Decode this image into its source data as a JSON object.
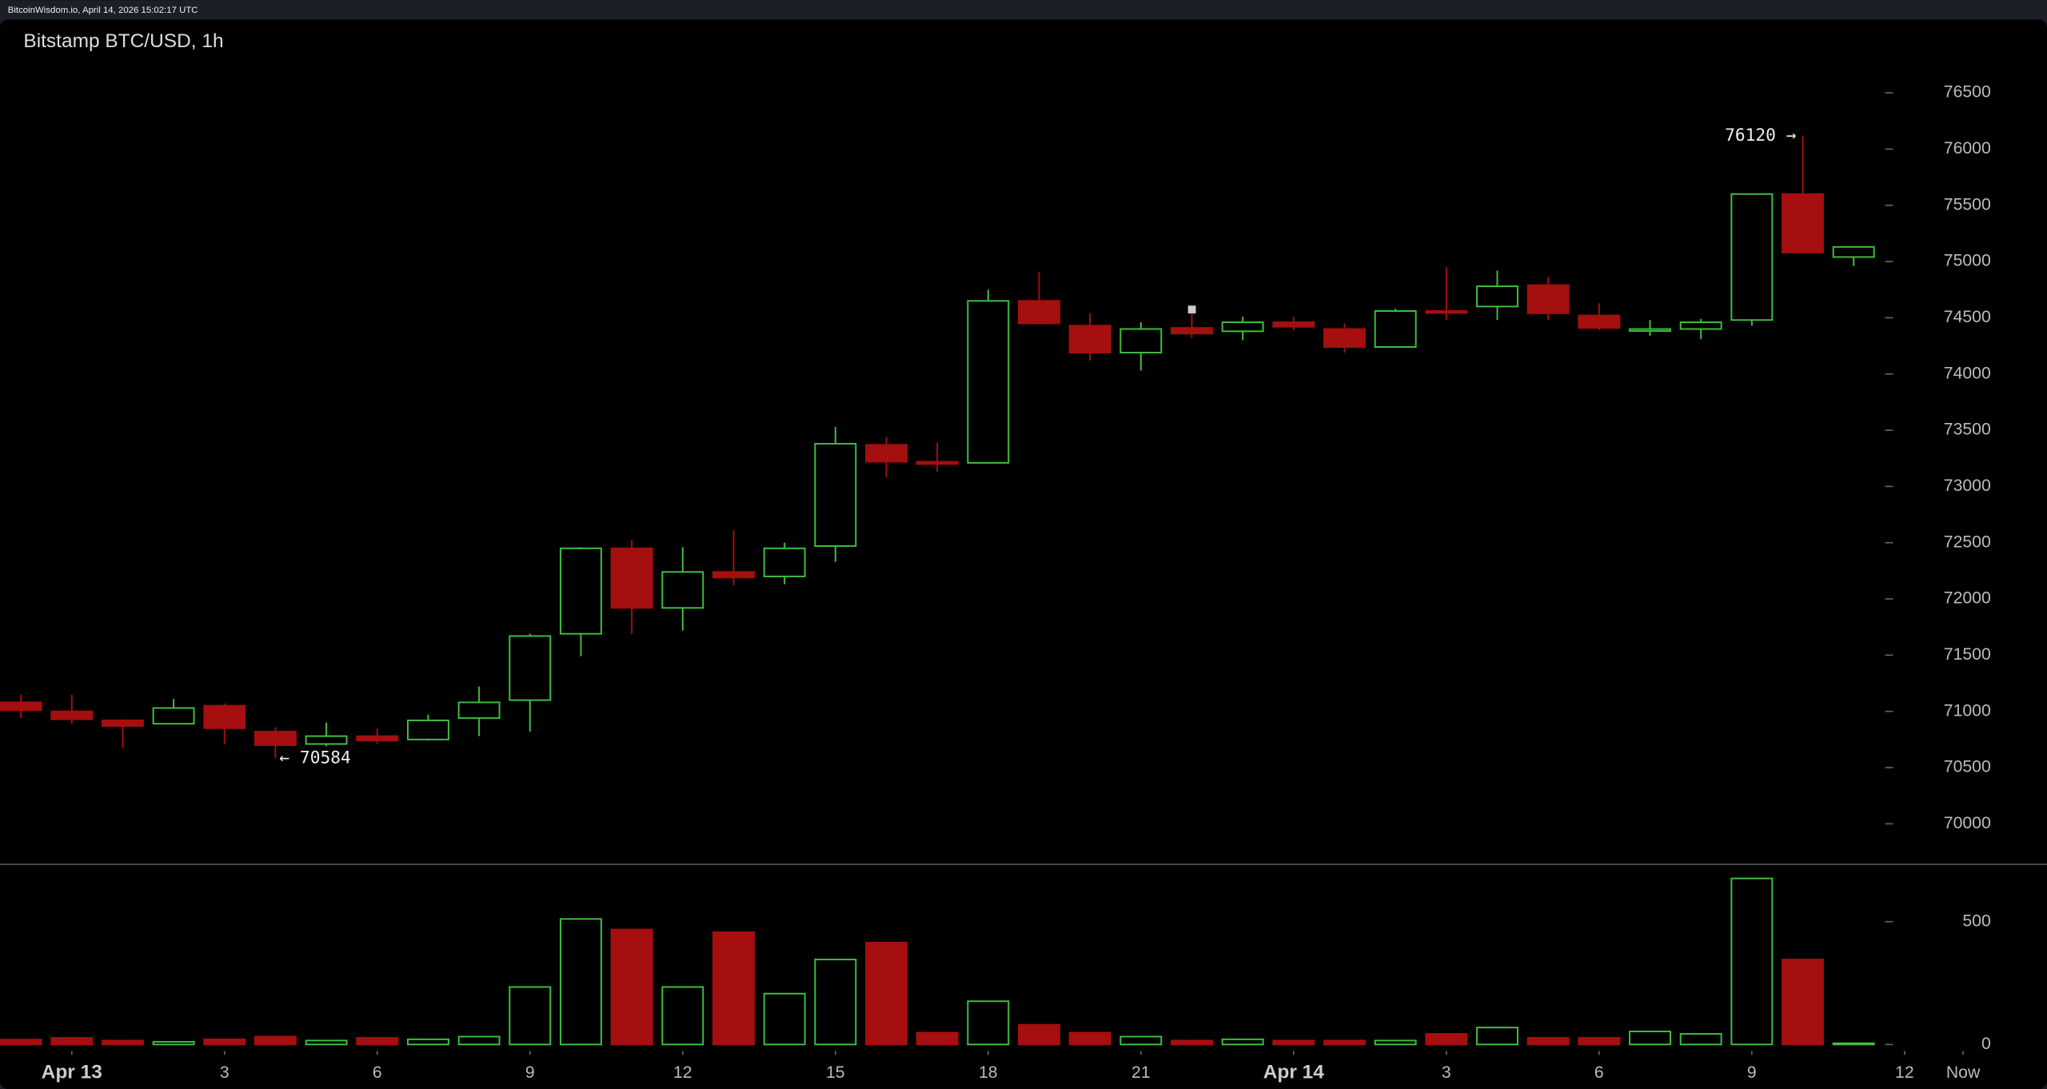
{
  "header": "BitcoinWisdom.io, April 14, 2026 15:02:17 UTC",
  "chart_data": [
    {
      "type": "candlestick",
      "title": "Bitstamp BTC/USD, 1h",
      "x": [
        -1,
        0,
        1,
        2,
        3,
        4,
        5,
        6,
        7,
        8,
        9,
        10,
        11,
        12,
        13,
        14,
        15,
        16,
        17,
        18,
        19,
        20,
        21,
        22,
        23,
        24,
        25,
        26,
        27,
        28,
        29,
        30,
        31,
        32,
        33,
        34,
        35
      ],
      "open": [
        71080,
        71000,
        70920,
        70890,
        71050,
        70820,
        70710,
        70780,
        70750,
        70940,
        71100,
        71690,
        72450,
        71920,
        72240,
        72200,
        72470,
        73370,
        73220,
        73210,
        74650,
        74430,
        74190,
        74410,
        74380,
        74460,
        74400,
        74240,
        74560,
        74600,
        74790,
        74520,
        74390,
        74400,
        74480,
        75600,
        75040
      ],
      "high": [
        71150,
        71150,
        70930,
        71110,
        71070,
        70860,
        70900,
        70850,
        70970,
        71220,
        71690,
        72460,
        72520,
        72460,
        72610,
        72500,
        73530,
        73440,
        73390,
        74750,
        74910,
        74540,
        74460,
        74540,
        74510,
        74510,
        74450,
        74580,
        74950,
        74920,
        74860,
        74630,
        74480,
        74490,
        75600,
        76120,
        75130
      ],
      "low": [
        70940,
        70890,
        70670,
        70890,
        70710,
        70584,
        70690,
        70710,
        70740,
        70780,
        70820,
        71490,
        71690,
        71720,
        72120,
        72130,
        72330,
        73080,
        73130,
        73210,
        74450,
        74120,
        74030,
        74320,
        74300,
        74390,
        74190,
        74240,
        74480,
        74480,
        74480,
        74390,
        74340,
        74310,
        74430,
        75080,
        74960
      ],
      "close": [
        71010,
        70930,
        70870,
        71030,
        70850,
        70700,
        70780,
        70740,
        70920,
        71080,
        71670,
        72450,
        71920,
        72240,
        72190,
        72450,
        73380,
        73220,
        73200,
        74650,
        74450,
        74190,
        74400,
        74360,
        74460,
        74420,
        74240,
        74560,
        74550,
        74780,
        74540,
        74410,
        74400,
        74460,
        75600,
        75080,
        75130
      ],
      "up_color": "#3fbf3f",
      "down_color": "#a50f0f",
      "xlim": [
        -1.41,
        38.08
      ],
      "xticks": [
        {
          "value": 0,
          "label": "Apr 13"
        },
        3,
        6,
        9,
        12,
        15,
        18,
        21,
        {
          "value": 24,
          "label": "Apr 14"
        },
        {
          "value": 27,
          "label": "3"
        },
        {
          "value": 30,
          "label": "6"
        },
        {
          "value": 33,
          "label": "9"
        },
        {
          "value": 36,
          "label": "12"
        },
        {
          "value": 37.15,
          "label": "Now"
        }
      ],
      "ylim": [
        69640,
        76860
      ],
      "yticks": [
        70000,
        70500,
        71000,
        71500,
        72000,
        72500,
        73000,
        73500,
        74000,
        74500,
        75000,
        75500,
        76000,
        76500
      ],
      "annotations": [
        "76120 →",
        "← 70584"
      ]
    },
    {
      "type": "bar",
      "values": [
        20,
        27,
        16,
        11,
        21,
        32,
        16,
        27,
        21,
        32,
        234,
        511,
        468,
        234,
        457,
        207,
        346,
        415,
        48,
        176,
        80,
        48,
        32,
        16,
        21,
        16,
        16,
        16,
        43,
        69,
        27,
        27,
        53,
        43,
        676,
        346,
        5
      ],
      "ylim": [
        0,
        691
      ],
      "yticks": [
        0,
        500
      ]
    }
  ]
}
